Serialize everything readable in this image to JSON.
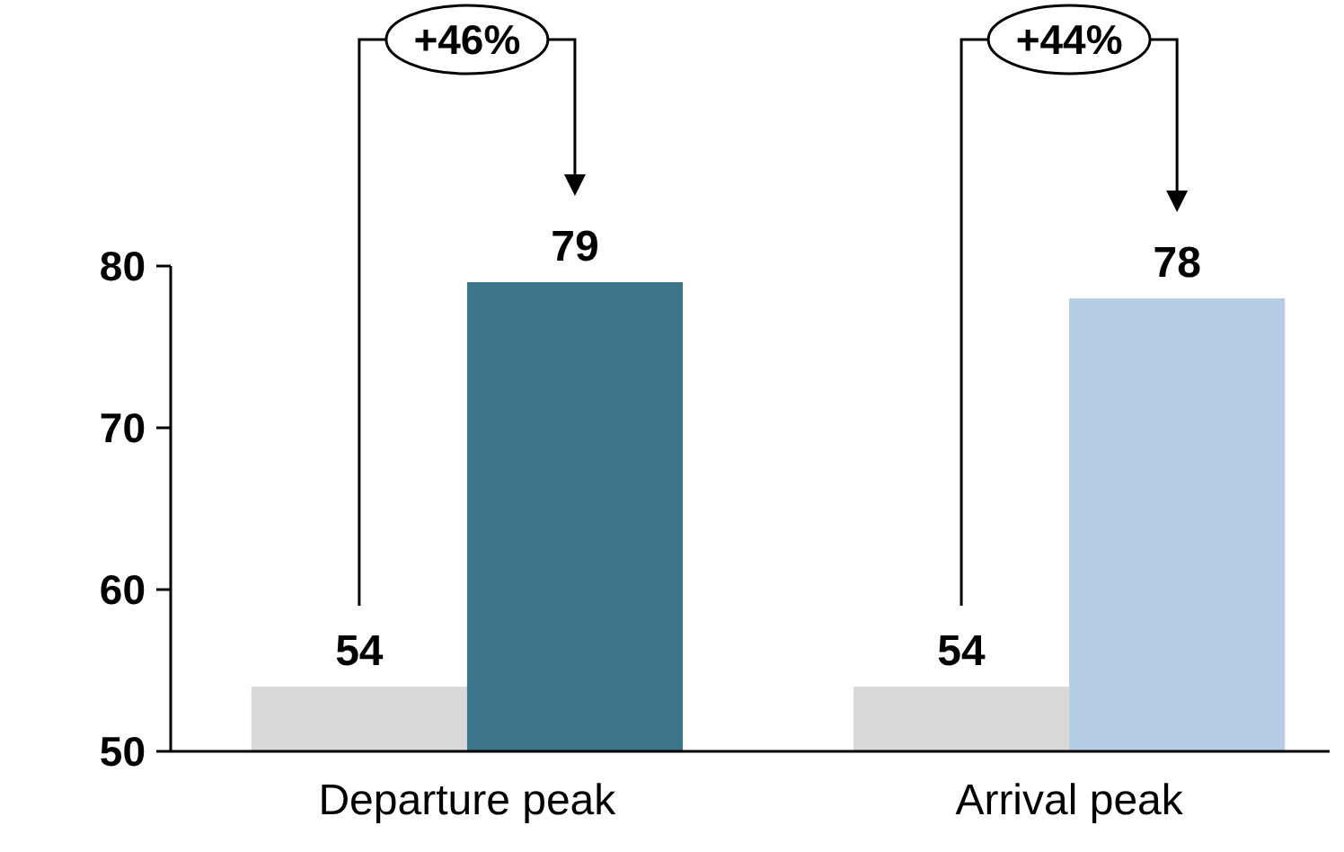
{
  "chart_data": {
    "type": "bar",
    "categories": [
      "Departure peak",
      "Arrival peak"
    ],
    "series": [
      {
        "color": "#d9d9d9",
        "values": [
          54,
          54
        ]
      },
      {
        "colors": [
          "#3c7489",
          "#b4cce4"
        ],
        "values": [
          79,
          78
        ]
      }
    ],
    "ylim": [
      50,
      80
    ],
    "yticks": [
      50,
      60,
      70,
      80
    ],
    "data_labels": true,
    "annotations": [
      "+46%",
      "+44%"
    ]
  }
}
